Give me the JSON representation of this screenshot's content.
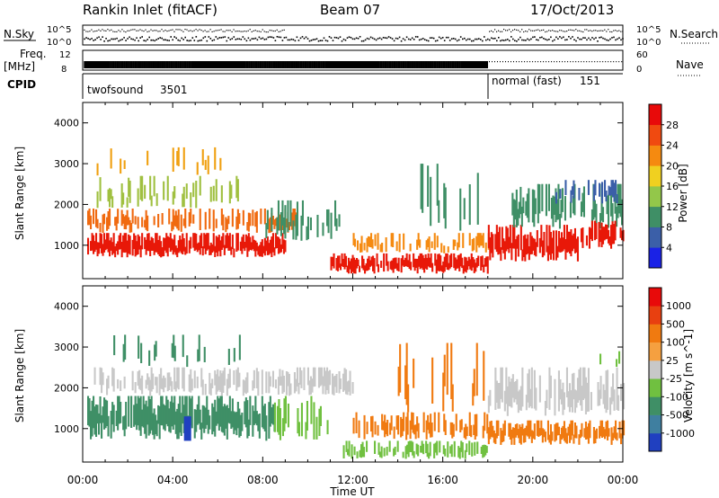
{
  "header": {
    "station": "Rankin Inlet (fitACF)",
    "beam": "Beam 07",
    "date": "17/Oct/2013"
  },
  "top_panel_labels": {
    "nsky": "N.Sky",
    "nsearch": "N.Search",
    "freq_line1": "Freq.",
    "freq_line2": "[MHz]",
    "nave": "Nave",
    "cpid": "CPID",
    "nsky_ticks": [
      "10^5",
      "10^0"
    ],
    "nsearch_ticks": [
      "10^5",
      "10^0"
    ],
    "freq_ticks": [
      "12",
      "8"
    ],
    "nave_ticks": [
      "60",
      "0"
    ]
  },
  "cpid_modes": [
    {
      "name": "twofsound",
      "id": "3501",
      "start_hour": 0,
      "end_hour": 18
    },
    {
      "name": "normal (fast)",
      "id": "151",
      "start_hour": 18,
      "end_hour": 24
    }
  ],
  "chart_data": [
    {
      "type": "heatmap",
      "panel": "power",
      "xlabel": "",
      "ylabel": "Slant Range [km]",
      "x_ticks": [
        "00:00",
        "04:00",
        "08:00",
        "12:00",
        "16:00",
        "20:00",
        "00:00"
      ],
      "y_ticks": [
        1000,
        2000,
        3000,
        4000
      ],
      "xlim_hours": [
        0,
        24
      ],
      "ylim_km": [
        180,
        4500
      ],
      "colorbar": {
        "label": "Power [dB]",
        "ticks": [
          4,
          8,
          12,
          16,
          20,
          24,
          28
        ],
        "colors": [
          "#1a22e6",
          "#3b5fa8",
          "#3f8f66",
          "#93c74a",
          "#f0d020",
          "#f58a10",
          "#f04a10",
          "#e80a0a"
        ]
      },
      "bands": [
        {
          "start": 0.2,
          "end": 9.0,
          "low_km": 700,
          "high_km": 1300,
          "color": "#e81808",
          "density": 0.95
        },
        {
          "start": 0.2,
          "end": 9.5,
          "low_km": 1300,
          "high_km": 1900,
          "color": "#f06a10",
          "density": 0.6
        },
        {
          "start": 0.5,
          "end": 7.0,
          "low_km": 1900,
          "high_km": 2700,
          "color": "#a0c040",
          "density": 0.35
        },
        {
          "start": 0.5,
          "end": 7.0,
          "low_km": 2700,
          "high_km": 3400,
          "color": "#f0a010",
          "density": 0.18
        },
        {
          "start": 8.0,
          "end": 11.5,
          "low_km": 1100,
          "high_km": 2100,
          "color": "#3f8f66",
          "density": 0.5
        },
        {
          "start": 11.0,
          "end": 18.0,
          "low_km": 300,
          "high_km": 800,
          "color": "#e81808",
          "density": 0.9
        },
        {
          "start": 12.0,
          "end": 18.0,
          "low_km": 800,
          "high_km": 1300,
          "color": "#f58a10",
          "density": 0.45
        },
        {
          "start": 15.0,
          "end": 18.0,
          "low_km": 1300,
          "high_km": 3000,
          "color": "#3f8f66",
          "density": 0.2
        },
        {
          "start": 18.0,
          "end": 22.0,
          "low_km": 600,
          "high_km": 1500,
          "color": "#e81808",
          "density": 0.92
        },
        {
          "start": 19.0,
          "end": 24.0,
          "low_km": 1400,
          "high_km": 2500,
          "color": "#3f8f66",
          "density": 0.6
        },
        {
          "start": 22.0,
          "end": 24.0,
          "low_km": 900,
          "high_km": 1600,
          "color": "#e81808",
          "density": 0.7
        },
        {
          "start": 21.0,
          "end": 24.0,
          "low_km": 2000,
          "high_km": 2600,
          "color": "#3b5fa8",
          "density": 0.4
        }
      ]
    },
    {
      "type": "heatmap",
      "panel": "velocity",
      "xlabel": "Time UT",
      "ylabel": "Slant Range [km]",
      "x_ticks": [
        "00:00",
        "04:00",
        "08:00",
        "12:00",
        "16:00",
        "20:00",
        "00:00"
      ],
      "y_ticks": [
        1000,
        2000,
        3000,
        4000
      ],
      "xlim_hours": [
        0,
        24
      ],
      "ylim_km": [
        180,
        4500
      ],
      "colorbar": {
        "label": "Velocity [m s^-1]",
        "ticks": [
          "1000",
          "500",
          "100",
          "25",
          "-25",
          "-100",
          "-500",
          "-1000"
        ],
        "colors": [
          "#2040c0",
          "#3f7fa0",
          "#3f8f66",
          "#70c040",
          "#c8c8c8",
          "#f5a040",
          "#f07a10",
          "#e84010",
          "#e80a0a"
        ]
      },
      "bands": [
        {
          "start": 0.2,
          "end": 8.5,
          "low_km": 700,
          "high_km": 1800,
          "color": "#3f8f66",
          "density": 0.95
        },
        {
          "start": 0.5,
          "end": 12.0,
          "low_km": 1800,
          "high_km": 2500,
          "color": "#c8c8c8",
          "density": 0.6
        },
        {
          "start": 8.5,
          "end": 11.0,
          "low_km": 700,
          "high_km": 1800,
          "color": "#70c040",
          "density": 0.5
        },
        {
          "start": 1.0,
          "end": 7.0,
          "low_km": 2500,
          "high_km": 3300,
          "color": "#3f8f66",
          "density": 0.18
        },
        {
          "start": 11.5,
          "end": 18.0,
          "low_km": 250,
          "high_km": 700,
          "color": "#70c040",
          "density": 0.6
        },
        {
          "start": 12.0,
          "end": 18.0,
          "low_km": 700,
          "high_km": 1400,
          "color": "#f07a10",
          "density": 0.55
        },
        {
          "start": 14.0,
          "end": 18.0,
          "low_km": 1400,
          "high_km": 3100,
          "color": "#f07a10",
          "density": 0.18
        },
        {
          "start": 18.0,
          "end": 24.0,
          "low_km": 600,
          "high_km": 1200,
          "color": "#f07a10",
          "density": 0.88
        },
        {
          "start": 18.0,
          "end": 24.0,
          "low_km": 1300,
          "high_km": 2500,
          "color": "#c8c8c8",
          "density": 0.7
        },
        {
          "start": 22.0,
          "end": 24.0,
          "low_km": 2500,
          "high_km": 3000,
          "color": "#70c040",
          "density": 0.15
        }
      ],
      "spots": [
        {
          "hour": 4.5,
          "low_km": 700,
          "high_km": 1300,
          "color": "#2040c0"
        }
      ]
    }
  ]
}
